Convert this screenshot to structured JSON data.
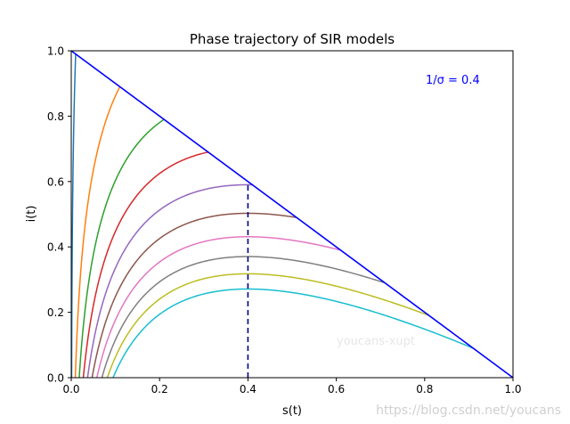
{
  "chart_data": {
    "type": "line",
    "title": "Phase trajectory of SIR models",
    "xlabel": "s(t)",
    "ylabel": "i(t)",
    "xlim": [
      0,
      1
    ],
    "ylim": [
      0,
      1
    ],
    "xticks": [
      "0.0",
      "0.2",
      "0.4",
      "0.6",
      "0.8",
      "1.0"
    ],
    "yticks": [
      "0.0",
      "0.2",
      "0.4",
      "0.6",
      "0.8",
      "1.0"
    ],
    "annotation": "1/σ = 0.4",
    "grid": false,
    "inv_sigma": 0.4,
    "initial_i": [
      0.99,
      0.89,
      0.79,
      0.69,
      0.59,
      0.49,
      0.39,
      0.29,
      0.19,
      0.09
    ],
    "series_colors": [
      "#1f77b4",
      "#ff7f0e",
      "#2ca02c",
      "#d62728",
      "#9467bd",
      "#8c564b",
      "#e377c2",
      "#7f7f7f",
      "#bcbd22",
      "#17becf"
    ],
    "boundary_line": {
      "x": [
        0,
        1
      ],
      "y": [
        1,
        0
      ],
      "color": "#0000ff"
    },
    "threshold_line": {
      "x": 0.4,
      "y": [
        0,
        0.59
      ],
      "color": "#00008b",
      "style": "dashed"
    }
  },
  "watermarks": [
    "youcans-xupt",
    "https://blog.csdn.net/youcans"
  ]
}
